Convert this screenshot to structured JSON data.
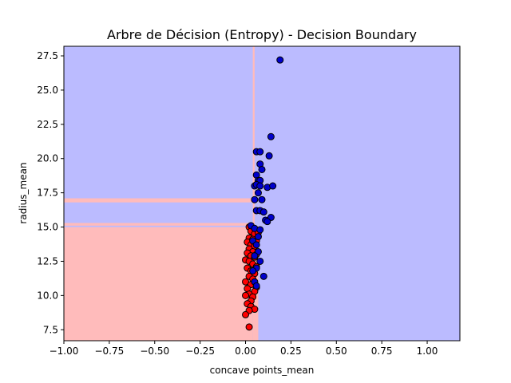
{
  "chart_data": {
    "type": "scatter",
    "title": "Arbre de Décision (Entropy) - Decision Boundary",
    "xlabel": "concave points_mean",
    "ylabel": "radius_mean",
    "xlim": [
      -1.0,
      1.18
    ],
    "ylim": [
      6.7,
      28.2
    ],
    "xticks": [
      "−1.00",
      "−0.75",
      "−0.50",
      "−0.25",
      "0.00",
      "0.25",
      "0.50",
      "0.75",
      "1.00"
    ],
    "yticks": [
      "7.5",
      "10.0",
      "12.5",
      "15.0",
      "17.5",
      "20.0",
      "22.5",
      "25.0",
      "27.5"
    ],
    "colors": {
      "region_class0": "#ffbbbb",
      "region_class1": "#bbbbff",
      "point_class0": "#ff0000",
      "point_class1": "#0000cc",
      "point_edge": "#000000"
    },
    "regions": [
      {
        "class": 1,
        "x": [
          -1.0,
          1.18
        ],
        "y": [
          6.7,
          28.2
        ]
      },
      {
        "class": 0,
        "x": [
          -1.0,
          0.04
        ],
        "y": [
          6.7,
          15.0
        ]
      },
      {
        "class": 0,
        "x": [
          -1.0,
          0.035
        ],
        "y": [
          16.8,
          17.1
        ]
      },
      {
        "class": 0,
        "x": [
          0.04,
          0.07
        ],
        "y": [
          6.7,
          15.05
        ]
      },
      {
        "class": 0,
        "x": [
          0.04,
          0.05
        ],
        "y": [
          15.0,
          28.2
        ]
      },
      {
        "class": 0,
        "x": [
          -1.0,
          0.04
        ],
        "y": [
          15.1,
          15.3
        ]
      }
    ],
    "series": [
      {
        "class": 0,
        "points": [
          [
            0.02,
            15.0
          ],
          [
            0.04,
            14.9
          ],
          [
            0.03,
            14.7
          ],
          [
            0.05,
            14.5
          ],
          [
            0.07,
            14.6
          ],
          [
            0.02,
            14.2
          ],
          [
            0.04,
            14.1
          ],
          [
            0.06,
            14.0
          ],
          [
            0.01,
            13.9
          ],
          [
            0.03,
            13.7
          ],
          [
            0.05,
            13.6
          ],
          [
            0.02,
            13.4
          ],
          [
            0.04,
            13.2
          ],
          [
            0.06,
            13.0
          ],
          [
            0.01,
            13.1
          ],
          [
            0.03,
            12.9
          ],
          [
            0.05,
            12.8
          ],
          [
            0.0,
            12.6
          ],
          [
            0.02,
            12.5
          ],
          [
            0.04,
            12.3
          ],
          [
            0.06,
            12.1
          ],
          [
            0.01,
            12.0
          ],
          [
            0.03,
            11.8
          ],
          [
            0.05,
            11.6
          ],
          [
            0.02,
            11.4
          ],
          [
            0.04,
            11.2
          ],
          [
            0.0,
            11.0
          ],
          [
            0.06,
            10.6
          ],
          [
            0.03,
            10.8
          ],
          [
            0.01,
            10.5
          ],
          [
            0.05,
            10.3
          ],
          [
            0.02,
            10.1
          ],
          [
            0.04,
            9.9
          ],
          [
            0.0,
            10.0
          ],
          [
            0.03,
            9.6
          ],
          [
            0.01,
            9.4
          ],
          [
            0.03,
            9.2
          ],
          [
            0.05,
            9.0
          ],
          [
            0.02,
            8.9
          ],
          [
            0.0,
            8.6
          ],
          [
            0.02,
            7.7
          ]
        ]
      },
      {
        "class": 1,
        "points": [
          [
            0.19,
            27.2
          ],
          [
            0.14,
            21.6
          ],
          [
            0.06,
            20.5
          ],
          [
            0.08,
            20.5
          ],
          [
            0.13,
            20.2
          ],
          [
            0.08,
            19.6
          ],
          [
            0.09,
            19.2
          ],
          [
            0.06,
            18.8
          ],
          [
            0.07,
            18.4
          ],
          [
            0.08,
            18.4
          ],
          [
            0.05,
            18.0
          ],
          [
            0.06,
            18.1
          ],
          [
            0.08,
            18.0
          ],
          [
            0.12,
            17.9
          ],
          [
            0.15,
            18.0
          ],
          [
            0.07,
            17.5
          ],
          [
            0.05,
            17.0
          ],
          [
            0.09,
            17.0
          ],
          [
            0.06,
            16.2
          ],
          [
            0.08,
            16.2
          ],
          [
            0.1,
            16.1
          ],
          [
            0.11,
            15.5
          ],
          [
            0.14,
            15.7
          ],
          [
            0.12,
            15.4
          ],
          [
            0.03,
            15.1
          ],
          [
            0.05,
            14.9
          ],
          [
            0.08,
            14.8
          ],
          [
            0.07,
            14.3
          ],
          [
            0.04,
            14.0
          ],
          [
            0.06,
            13.7
          ],
          [
            0.07,
            13.2
          ],
          [
            0.05,
            12.9
          ],
          [
            0.08,
            12.5
          ],
          [
            0.06,
            12.0
          ],
          [
            0.04,
            11.8
          ],
          [
            0.1,
            11.4
          ],
          [
            0.05,
            11.0
          ],
          [
            0.06,
            10.7
          ]
        ]
      }
    ]
  }
}
